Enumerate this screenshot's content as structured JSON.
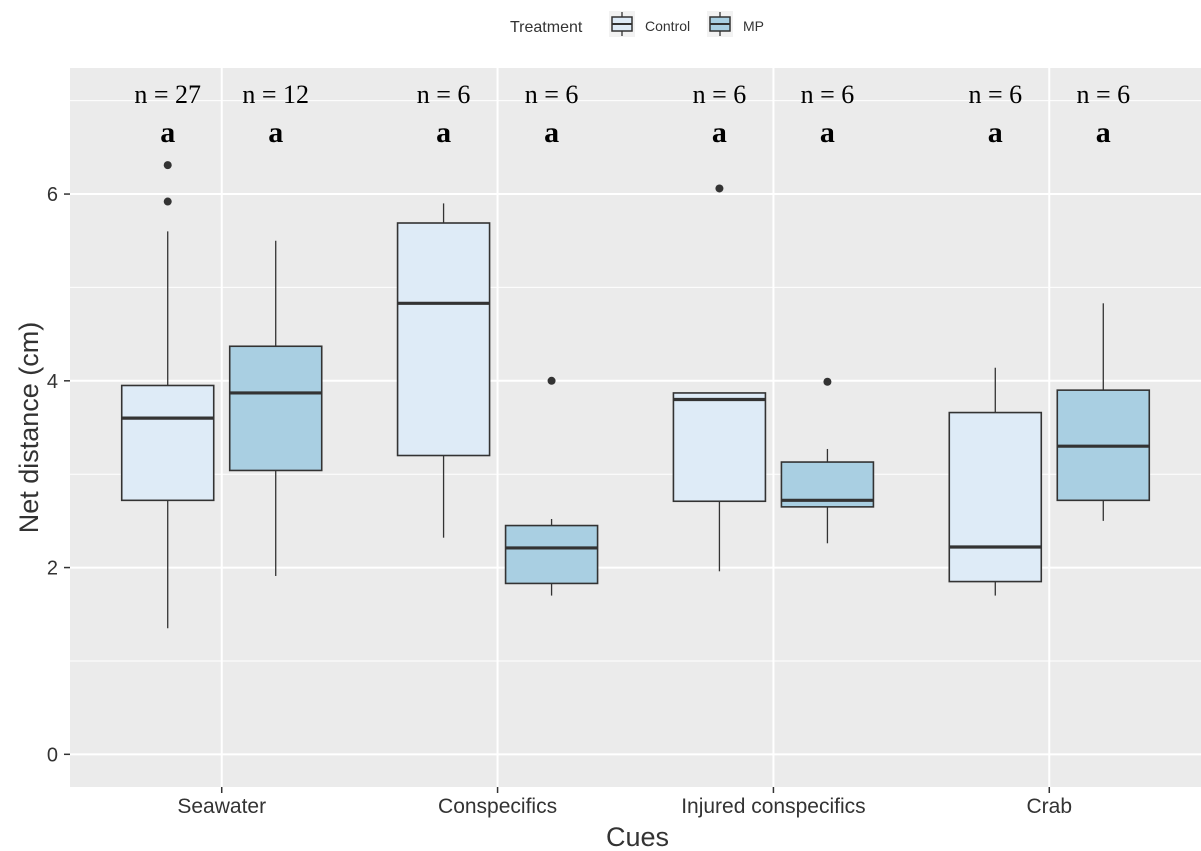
{
  "chart_data": {
    "type": "boxplot",
    "xlabel": "Cues",
    "ylabel": "Net distance (cm)",
    "ylim": [
      -0.35,
      7.35
    ],
    "yticks": [
      0,
      2,
      4,
      6
    ],
    "grid": true,
    "legend": {
      "position": "top",
      "title": "Treatment",
      "entries": [
        "Control",
        "MP"
      ]
    },
    "colors": {
      "Control": "#deebf7",
      "MP": "#a9cfe2",
      "panel": "#ebebeb",
      "outline": "#333333"
    },
    "categories": [
      "Seawater",
      "Conspecifics",
      "Injured conspecifics",
      "Crab"
    ],
    "series": [
      {
        "name": "Control",
        "boxes": [
          {
            "whisker_low": 1.35,
            "q1": 2.72,
            "median": 3.6,
            "q3": 3.95,
            "whisker_high": 5.6,
            "outliers": [
              5.92,
              6.31
            ],
            "n_label": "n = 27",
            "sig": "a"
          },
          {
            "whisker_low": 2.32,
            "q1": 3.2,
            "median": 4.83,
            "q3": 5.69,
            "whisker_high": 5.9,
            "outliers": [],
            "n_label": "n = 6",
            "sig": "a"
          },
          {
            "whisker_low": 1.96,
            "q1": 2.71,
            "median": 3.8,
            "q3": 3.87,
            "whisker_high": 3.87,
            "outliers": [
              6.06
            ],
            "n_label": "n = 6",
            "sig": "a"
          },
          {
            "whisker_low": 1.7,
            "q1": 1.85,
            "median": 2.22,
            "q3": 3.66,
            "whisker_high": 4.14,
            "outliers": [],
            "n_label": "n = 6",
            "sig": "a"
          }
        ]
      },
      {
        "name": "MP",
        "boxes": [
          {
            "whisker_low": 1.91,
            "q1": 3.04,
            "median": 3.87,
            "q3": 4.37,
            "whisker_high": 5.5,
            "outliers": [],
            "n_label": "n = 12",
            "sig": "a"
          },
          {
            "whisker_low": 1.7,
            "q1": 1.83,
            "median": 2.21,
            "q3": 2.45,
            "whisker_high": 2.52,
            "outliers": [
              4.0
            ],
            "n_label": "n = 6",
            "sig": "a"
          },
          {
            "whisker_low": 2.26,
            "q1": 2.65,
            "median": 2.72,
            "q3": 3.13,
            "whisker_high": 3.27,
            "outliers": [
              3.99
            ],
            "n_label": "n = 6",
            "sig": "a"
          },
          {
            "whisker_low": 2.5,
            "q1": 2.72,
            "median": 3.3,
            "q3": 3.9,
            "whisker_high": 4.83,
            "outliers": [],
            "n_label": "n = 6",
            "sig": "a"
          }
        ]
      }
    ]
  }
}
